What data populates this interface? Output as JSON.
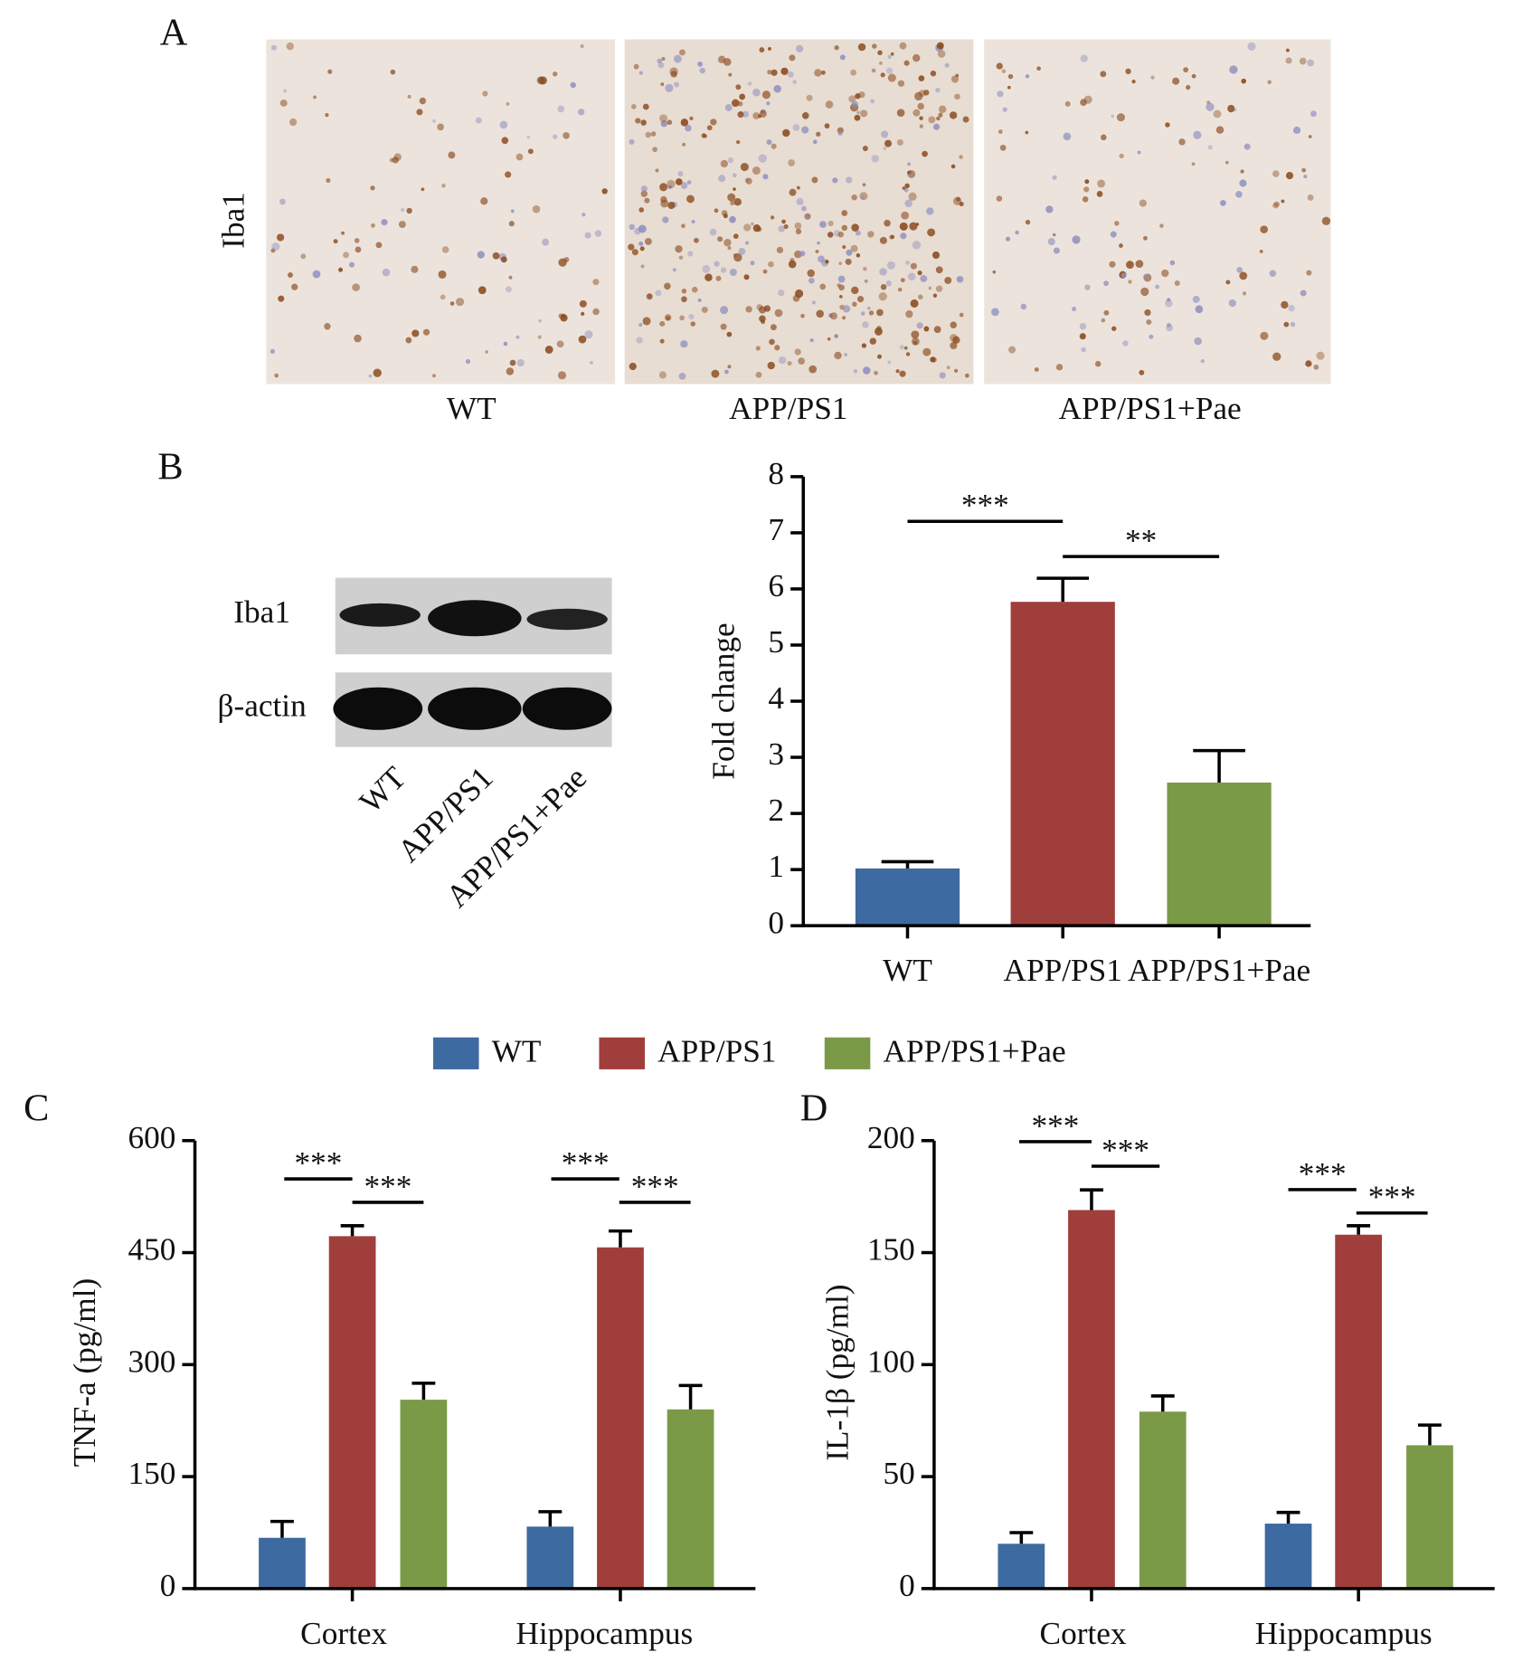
{
  "panel_labels": [
    "A",
    "B",
    "C",
    "D"
  ],
  "histology": {
    "stain": "Iba1",
    "groups": [
      "WT",
      "APP/PS1",
      "APP/PS1+Pae"
    ]
  },
  "blot": {
    "rows": [
      "Iba1",
      "β-actin"
    ],
    "lanes": [
      "WT",
      "APP/PS1",
      "APP/PS1+Pae"
    ]
  },
  "chart_data": [
    {
      "type": "bar",
      "y_label": "Fold change",
      "categories": [
        "WT",
        "APP/PS1",
        "APP/PS1+Pae"
      ],
      "values": [
        1.02,
        5.77,
        2.55
      ],
      "errors": [
        0.12,
        0.42,
        0.57
      ],
      "colors": [
        "#3d6aa0",
        "#a03e3c",
        "#7b9a48"
      ],
      "ylim": [
        0,
        8
      ],
      "yticks": [
        0,
        1,
        2,
        3,
        4,
        5,
        6,
        7,
        8
      ],
      "annotations": [
        "***",
        "**"
      ]
    },
    {
      "type": "grouped-bar",
      "y_label": "TNF-a (pg/ml)",
      "categories": [
        "Cortex",
        "Hippocampus"
      ],
      "series": [
        {
          "name": "WT",
          "color": "#3d6aa0",
          "values": [
            68,
            83
          ],
          "errors": [
            22,
            20
          ]
        },
        {
          "name": "APP/PS1",
          "color": "#a03e3c",
          "values": [
            472,
            457
          ],
          "errors": [
            14,
            22
          ]
        },
        {
          "name": "APP/PS1+Pae",
          "color": "#7b9a48",
          "values": [
            253,
            240
          ],
          "errors": [
            22,
            32
          ]
        }
      ],
      "ylim": [
        0,
        600
      ],
      "yticks": [
        0,
        150,
        300,
        450,
        600
      ],
      "annotations": [
        "***",
        "***",
        "***",
        "***"
      ]
    },
    {
      "type": "grouped-bar",
      "y_label": "IL-1β (pg/ml)",
      "categories": [
        "Cortex",
        "Hippocampus"
      ],
      "series": [
        {
          "name": "WT",
          "color": "#3d6aa0",
          "values": [
            20,
            29
          ],
          "errors": [
            5,
            5
          ]
        },
        {
          "name": "APP/PS1",
          "color": "#a03e3c",
          "values": [
            169,
            158
          ],
          "errors": [
            9,
            4
          ]
        },
        {
          "name": "APP/PS1+Pae",
          "color": "#7b9a48",
          "values": [
            79,
            64
          ],
          "errors": [
            7,
            9
          ]
        }
      ],
      "ylim": [
        0,
        200
      ],
      "yticks": [
        0,
        50,
        100,
        150,
        200
      ],
      "annotations": [
        "***",
        "***",
        "***",
        "***"
      ]
    }
  ]
}
